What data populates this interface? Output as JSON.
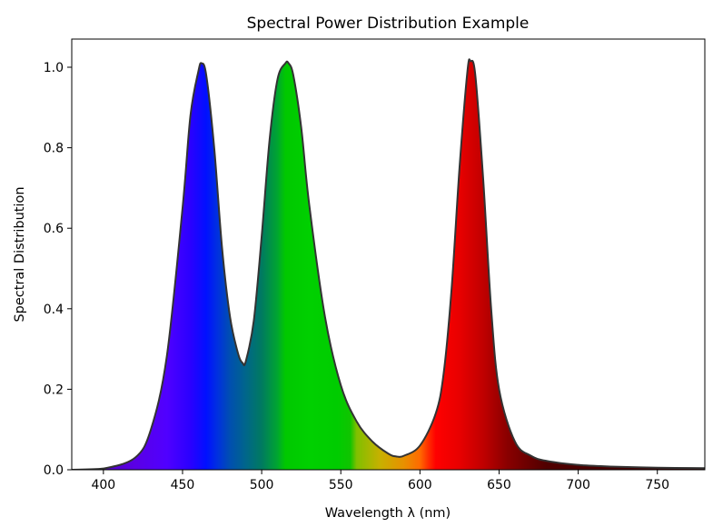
{
  "chart_data": {
    "type": "area",
    "title": "Spectral Power Distribution Example",
    "xlabel": "Wavelength λ (nm)",
    "ylabel": "Spectral Distribution",
    "xlim": [
      380,
      780
    ],
    "ylim": [
      0,
      1.07
    ],
    "xticks": [
      400,
      450,
      500,
      550,
      600,
      650,
      700,
      750
    ],
    "yticks": [
      0.0,
      0.2,
      0.4,
      0.6,
      0.8,
      1.0
    ],
    "grid": false,
    "fill": "wavelength-colored spectrum",
    "line_color": "#333333",
    "series": [
      {
        "x": [
          380,
          400,
          420,
          430,
          440,
          450,
          455,
          460,
          462,
          465,
          470,
          475,
          480,
          485,
          488,
          490,
          495,
          500,
          505,
          510,
          515,
          517,
          520,
          525,
          530,
          540,
          550,
          560,
          570,
          580,
          585,
          590,
          600,
          610,
          615,
          620,
          625,
          630,
          632,
          635,
          640,
          645,
          650,
          660,
          670,
          680,
          700,
          720,
          750,
          780
        ],
        "y": [
          0.0,
          0.003,
          0.03,
          0.1,
          0.28,
          0.65,
          0.88,
          0.99,
          1.01,
          0.98,
          0.8,
          0.55,
          0.38,
          0.29,
          0.265,
          0.27,
          0.37,
          0.58,
          0.82,
          0.97,
          1.01,
          1.01,
          0.98,
          0.85,
          0.66,
          0.38,
          0.21,
          0.12,
          0.07,
          0.04,
          0.033,
          0.035,
          0.06,
          0.14,
          0.24,
          0.45,
          0.75,
          0.99,
          1.015,
          0.98,
          0.72,
          0.4,
          0.2,
          0.07,
          0.035,
          0.022,
          0.012,
          0.008,
          0.005,
          0.004
        ]
      }
    ]
  }
}
